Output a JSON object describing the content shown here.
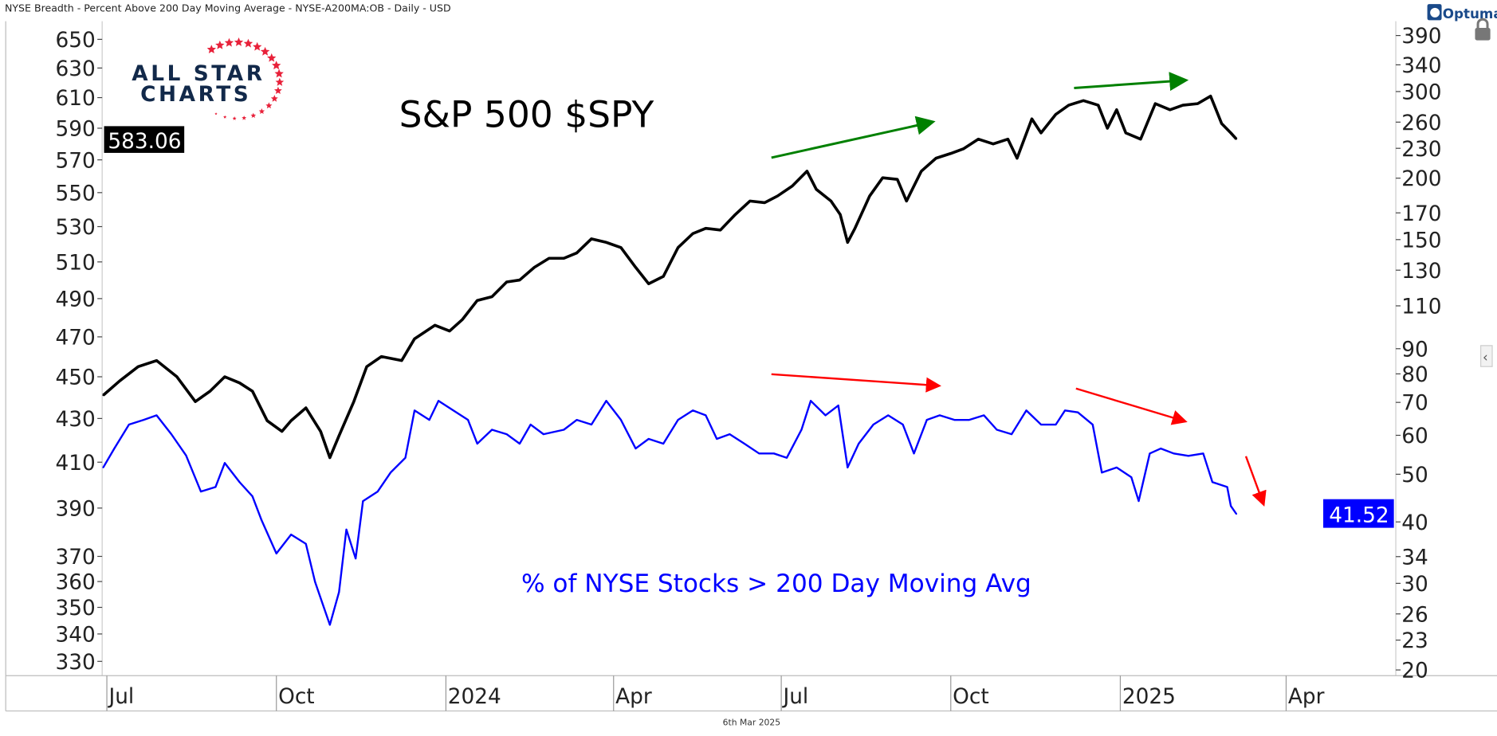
{
  "header": {
    "title": "NYSE Breadth - Percent Above 200 Day Moving Average - NYSE-A200MA:OB - Daily - USD",
    "brand": "Optuma",
    "footer_date": "6th Mar 2025"
  },
  "logo": {
    "line1": "ALL STAR",
    "line2": "CHARTS"
  },
  "colors": {
    "spy": "#000000",
    "breadth": "#0000ff",
    "up_arrow": "#008000",
    "down_arrow": "#ff0000",
    "logo_text": "#12294a",
    "logo_star": "#e8213a"
  },
  "chart_data": {
    "type": "line",
    "title": "S&P 500 $SPY",
    "subtitle": "% of NYSE Stocks > 200 Day Moving Avg",
    "x_unit": "days since 2023-07-01",
    "x_ticks": [
      {
        "label": "Jul",
        "day": 1
      },
      {
        "label": "Oct",
        "day": 93
      },
      {
        "label": "2024",
        "day": 185
      },
      {
        "label": "Apr",
        "day": 276
      },
      {
        "label": "Jul",
        "day": 367
      },
      {
        "label": "Oct",
        "day": 459
      },
      {
        "label": "2025",
        "day": 551
      },
      {
        "label": "Apr",
        "day": 641
      }
    ],
    "left_axis": {
      "scale": "log",
      "range": [
        330,
        650
      ],
      "ticks": [
        650,
        630,
        610,
        590,
        570,
        550,
        530,
        510,
        490,
        470,
        450,
        430,
        410,
        390,
        370,
        360,
        350,
        340,
        330
      ],
      "last_value_label": "583.06"
    },
    "right_axis": {
      "scale": "log",
      "range": [
        20,
        390
      ],
      "ticks": [
        390,
        340,
        300,
        260,
        230,
        200,
        170,
        150,
        130,
        110,
        90,
        80,
        70,
        60,
        50,
        40,
        34,
        30,
        26,
        23,
        20
      ],
      "last_value_label": "41.52"
    },
    "series": [
      {
        "name": "SPY",
        "axis": "left",
        "points": [
          [
            -1,
            441
          ],
          [
            8,
            448
          ],
          [
            18,
            455
          ],
          [
            28,
            458
          ],
          [
            39,
            450
          ],
          [
            49,
            438
          ],
          [
            57,
            443
          ],
          [
            65,
            450
          ],
          [
            73,
            447
          ],
          [
            80,
            443
          ],
          [
            88,
            429
          ],
          [
            96,
            424
          ],
          [
            101,
            429
          ],
          [
            109,
            435
          ],
          [
            117,
            424
          ],
          [
            122,
            412
          ],
          [
            127,
            422
          ],
          [
            135,
            438
          ],
          [
            142,
            455
          ],
          [
            150,
            460
          ],
          [
            161,
            458
          ],
          [
            168,
            469
          ],
          [
            179,
            476
          ],
          [
            187,
            473
          ],
          [
            194,
            479
          ],
          [
            202,
            489
          ],
          [
            210,
            491
          ],
          [
            218,
            499
          ],
          [
            225,
            500
          ],
          [
            233,
            507
          ],
          [
            241,
            512
          ],
          [
            249,
            512
          ],
          [
            256,
            515
          ],
          [
            264,
            523
          ],
          [
            272,
            521
          ],
          [
            280,
            518
          ],
          [
            288,
            507
          ],
          [
            295,
            498
          ],
          [
            303,
            502
          ],
          [
            311,
            518
          ],
          [
            319,
            526
          ],
          [
            326,
            529
          ],
          [
            334,
            528
          ],
          [
            342,
            537
          ],
          [
            350,
            545
          ],
          [
            358,
            544
          ],
          [
            365,
            548
          ],
          [
            373,
            554
          ],
          [
            381,
            563
          ],
          [
            386,
            552
          ],
          [
            394,
            545
          ],
          [
            399,
            537
          ],
          [
            403,
            521
          ],
          [
            407,
            529
          ],
          [
            415,
            548
          ],
          [
            422,
            559
          ],
          [
            430,
            558
          ],
          [
            435,
            545
          ],
          [
            443,
            563
          ],
          [
            451,
            571
          ],
          [
            459,
            574
          ],
          [
            466,
            577
          ],
          [
            474,
            583
          ],
          [
            482,
            580
          ],
          [
            490,
            583
          ],
          [
            495,
            571
          ],
          [
            503,
            596
          ],
          [
            508,
            587
          ],
          [
            516,
            599
          ],
          [
            523,
            605
          ],
          [
            531,
            608
          ],
          [
            539,
            605
          ],
          [
            544,
            590
          ],
          [
            549,
            602
          ],
          [
            554,
            587
          ],
          [
            562,
            583
          ],
          [
            570,
            606
          ],
          [
            578,
            602
          ],
          [
            585,
            605
          ],
          [
            593,
            606
          ],
          [
            600,
            611
          ],
          [
            606,
            593
          ],
          [
            611,
            587
          ],
          [
            614,
            583.06
          ]
        ]
      },
      {
        "name": "% NYSE > 200DMA",
        "axis": "right",
        "points": [
          [
            -1,
            51.6
          ],
          [
            5,
            56.4
          ],
          [
            13,
            63.1
          ],
          [
            21,
            64.5
          ],
          [
            28,
            65.9
          ],
          [
            36,
            60.3
          ],
          [
            44,
            54.6
          ],
          [
            52,
            46.1
          ],
          [
            60,
            47.1
          ],
          [
            65,
            52.7
          ],
          [
            73,
            48.2
          ],
          [
            80,
            45.1
          ],
          [
            85,
            40.3
          ],
          [
            93,
            34.5
          ],
          [
            101,
            37.7
          ],
          [
            109,
            36.1
          ],
          [
            114,
            30.2
          ],
          [
            122,
            24.7
          ],
          [
            127,
            28.8
          ],
          [
            131,
            38.6
          ],
          [
            136,
            33.7
          ],
          [
            140,
            44.1
          ],
          [
            148,
            46.1
          ],
          [
            155,
            50.4
          ],
          [
            163,
            54.0
          ],
          [
            168,
            67.4
          ],
          [
            176,
            64.5
          ],
          [
            181,
            70.5
          ],
          [
            189,
            67.4
          ],
          [
            197,
            64.5
          ],
          [
            202,
            57.7
          ],
          [
            210,
            61.6
          ],
          [
            218,
            60.3
          ],
          [
            225,
            57.7
          ],
          [
            231,
            63.1
          ],
          [
            238,
            60.3
          ],
          [
            249,
            61.6
          ],
          [
            256,
            64.5
          ],
          [
            264,
            63.1
          ],
          [
            272,
            70.5
          ],
          [
            280,
            64.5
          ],
          [
            288,
            56.4
          ],
          [
            295,
            59.0
          ],
          [
            303,
            57.7
          ],
          [
            311,
            64.5
          ],
          [
            319,
            67.4
          ],
          [
            326,
            65.9
          ],
          [
            332,
            59.0
          ],
          [
            339,
            60.3
          ],
          [
            347,
            57.7
          ],
          [
            355,
            55.1
          ],
          [
            363,
            55.1
          ],
          [
            370,
            54.0
          ],
          [
            378,
            61.6
          ],
          [
            383,
            70.5
          ],
          [
            391,
            65.9
          ],
          [
            398,
            69.0
          ],
          [
            403,
            51.6
          ],
          [
            409,
            57.7
          ],
          [
            417,
            63.1
          ],
          [
            425,
            65.9
          ],
          [
            433,
            63.1
          ],
          [
            439,
            55.1
          ],
          [
            446,
            64.5
          ],
          [
            453,
            65.9
          ],
          [
            461,
            64.5
          ],
          [
            469,
            64.5
          ],
          [
            477,
            65.9
          ],
          [
            484,
            61.6
          ],
          [
            492,
            60.3
          ],
          [
            500,
            67.4
          ],
          [
            508,
            63.1
          ],
          [
            516,
            63.1
          ],
          [
            521,
            67.4
          ],
          [
            528,
            66.8
          ],
          [
            536,
            63.1
          ],
          [
            541,
            50.4
          ],
          [
            549,
            51.6
          ],
          [
            557,
            49.3
          ],
          [
            561,
            44.1
          ],
          [
            567,
            55.1
          ],
          [
            573,
            56.4
          ],
          [
            580,
            55.1
          ],
          [
            588,
            54.5
          ],
          [
            596,
            55.1
          ],
          [
            601,
            48.2
          ],
          [
            609,
            47.1
          ],
          [
            611,
            43.1
          ],
          [
            614,
            41.52
          ]
        ]
      }
    ]
  }
}
